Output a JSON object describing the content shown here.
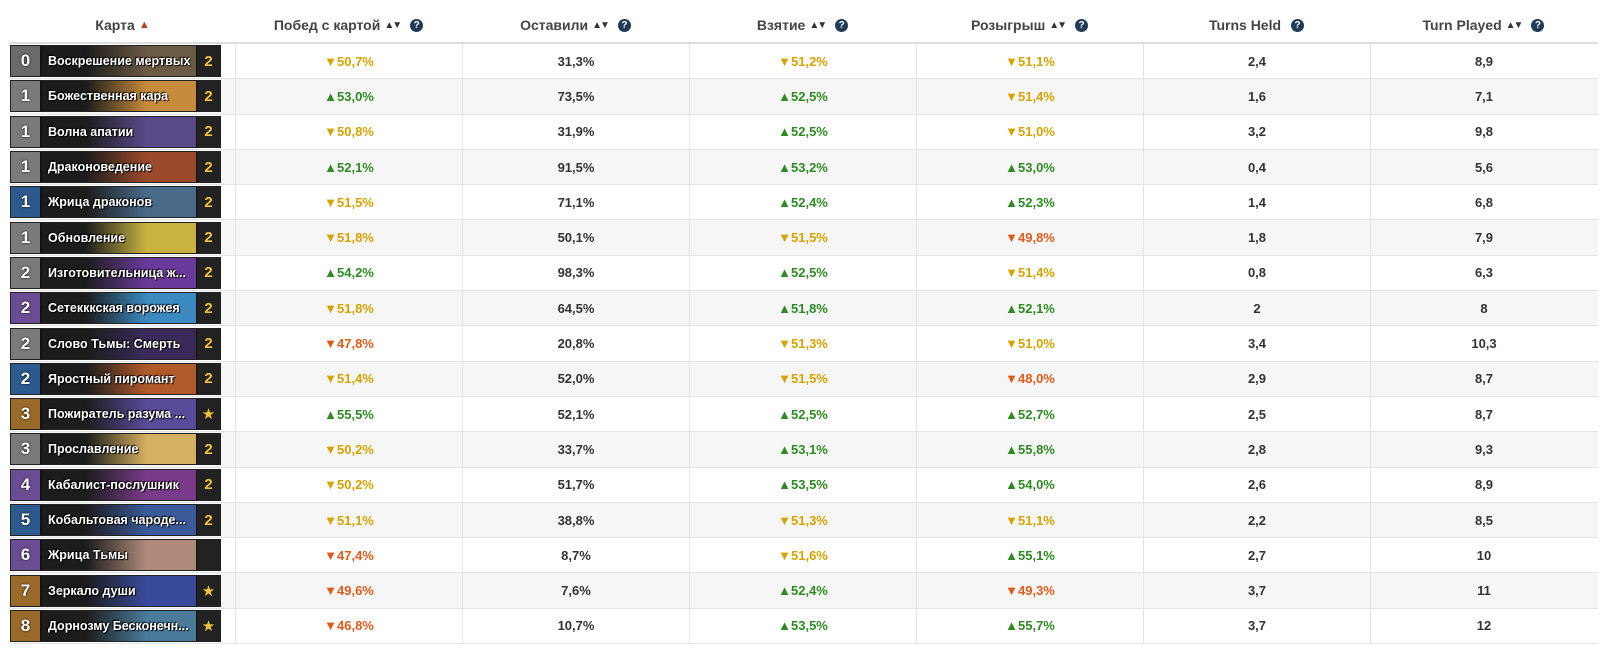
{
  "header": {
    "card": "Карта",
    "winrate": "Побед с картой",
    "kept": "Оставили",
    "drawn": "Взятие",
    "played": "Розыгрыш",
    "turns_held": "Turns Held",
    "turn_played": "Turn Played"
  },
  "rows": [
    {
      "mana": "0",
      "rarity": "free",
      "name": "Воскрешение мертвых",
      "count": "2",
      "art": "#6b5a44",
      "win": "▼50,7%",
      "winc": "warn",
      "kept": "31,3%",
      "drawn": "▼51,2%",
      "drawnc": "warn",
      "played": "▼51,1%",
      "playedc": "warn",
      "held": "2,4",
      "turn": "8,9"
    },
    {
      "mana": "1",
      "rarity": "common",
      "name": "Божественная кара",
      "count": "2",
      "art": "#c58a3a",
      "win": "▲53,0%",
      "winc": "pos",
      "kept": "73,5%",
      "drawn": "▲52,5%",
      "drawnc": "pos",
      "played": "▼51,4%",
      "playedc": "warn",
      "held": "1,6",
      "turn": "7,1"
    },
    {
      "mana": "1",
      "rarity": "common",
      "name": "Волна апатии",
      "count": "2",
      "art": "#5a4a8a",
      "win": "▼50,8%",
      "winc": "warn",
      "kept": "31,9%",
      "drawn": "▲52,5%",
      "drawnc": "pos",
      "played": "▼51,0%",
      "playedc": "warn",
      "held": "3,2",
      "turn": "9,8"
    },
    {
      "mana": "1",
      "rarity": "common",
      "name": "Драконоведение",
      "count": "2",
      "art": "#9a4a2a",
      "win": "▲52,1%",
      "winc": "pos",
      "kept": "91,5%",
      "drawn": "▲53,2%",
      "drawnc": "pos",
      "played": "▲53,0%",
      "playedc": "pos",
      "held": "0,4",
      "turn": "5,6"
    },
    {
      "mana": "1",
      "rarity": "rare",
      "name": "Жрица драконов",
      "count": "2",
      "art": "#4a6a8a",
      "win": "▼51,5%",
      "winc": "warn",
      "kept": "71,1%",
      "drawn": "▲52,4%",
      "drawnc": "pos",
      "played": "▲52,3%",
      "playedc": "pos",
      "held": "1,4",
      "turn": "6,8"
    },
    {
      "mana": "1",
      "rarity": "common",
      "name": "Обновление",
      "count": "2",
      "art": "#c9b240",
      "win": "▼51,8%",
      "winc": "warn",
      "kept": "50,1%",
      "drawn": "▼51,5%",
      "drawnc": "warn",
      "played": "▼49,8%",
      "playedc": "neg",
      "held": "1,8",
      "turn": "7,9"
    },
    {
      "mana": "2",
      "rarity": "common",
      "name": "Изготовительница ж...",
      "count": "2",
      "art": "#6a3a9a",
      "win": "▲54,2%",
      "winc": "pos",
      "kept": "98,3%",
      "drawn": "▲52,5%",
      "drawnc": "pos",
      "played": "▼51,4%",
      "playedc": "warn",
      "held": "0,8",
      "turn": "6,3"
    },
    {
      "mana": "2",
      "rarity": "epic",
      "name": "Сетекккская ворожея",
      "count": "2",
      "art": "#3a8ac0",
      "win": "▼51,8%",
      "winc": "warn",
      "kept": "64,5%",
      "drawn": "▲51,8%",
      "drawnc": "pos",
      "played": "▲52,1%",
      "playedc": "pos",
      "held": "2",
      "turn": "8"
    },
    {
      "mana": "2",
      "rarity": "common",
      "name": "Слово Тьмы: Смерть",
      "count": "2",
      "art": "#3a2a5a",
      "win": "▼47,8%",
      "winc": "neg",
      "kept": "20,8%",
      "drawn": "▼51,3%",
      "drawnc": "warn",
      "played": "▼51,0%",
      "playedc": "warn",
      "held": "3,4",
      "turn": "10,3"
    },
    {
      "mana": "2",
      "rarity": "rare",
      "name": "Яростный пиромант",
      "count": "2",
      "art": "#b05a2a",
      "win": "▼51,4%",
      "winc": "warn",
      "kept": "52,0%",
      "drawn": "▼51,5%",
      "drawnc": "warn",
      "played": "▼48,0%",
      "playedc": "neg",
      "held": "2,9",
      "turn": "8,7"
    },
    {
      "mana": "3",
      "rarity": "legend",
      "name": "Пожиратель разума ...",
      "count": "★",
      "art": "#5a4a9a",
      "win": "▲55,5%",
      "winc": "pos",
      "kept": "52,1%",
      "drawn": "▲52,5%",
      "drawnc": "pos",
      "played": "▲52,7%",
      "playedc": "pos",
      "held": "2,5",
      "turn": "8,7"
    },
    {
      "mana": "3",
      "rarity": "common",
      "name": "Прославление",
      "count": "2",
      "art": "#d4b060",
      "win": "▼50,2%",
      "winc": "warn",
      "kept": "33,7%",
      "drawn": "▲53,1%",
      "drawnc": "pos",
      "played": "▲55,8%",
      "playedc": "pos",
      "held": "2,8",
      "turn": "9,3"
    },
    {
      "mana": "4",
      "rarity": "epic",
      "name": "Кабалист-послушник",
      "count": "2",
      "art": "#7a3a8a",
      "win": "▼50,2%",
      "winc": "warn",
      "kept": "51,7%",
      "drawn": "▲53,5%",
      "drawnc": "pos",
      "played": "▲54,0%",
      "playedc": "pos",
      "held": "2,6",
      "turn": "8,9"
    },
    {
      "mana": "5",
      "rarity": "rare",
      "name": "Кобальтовая чароде...",
      "count": "2",
      "art": "#3a5a9a",
      "win": "▼51,1%",
      "winc": "warn",
      "kept": "38,8%",
      "drawn": "▼51,3%",
      "drawnc": "warn",
      "played": "▼51,1%",
      "playedc": "warn",
      "held": "2,2",
      "turn": "8,5"
    },
    {
      "mana": "6",
      "rarity": "epic",
      "name": "Жрица Тьмы",
      "count": "",
      "art": "#b08a7a",
      "win": "▼47,4%",
      "winc": "neg",
      "kept": "8,7%",
      "drawn": "▼51,6%",
      "drawnc": "warn",
      "played": "▲55,1%",
      "playedc": "pos",
      "held": "2,7",
      "turn": "10"
    },
    {
      "mana": "7",
      "rarity": "legend",
      "name": "Зеркало души",
      "count": "★",
      "art": "#3a4a9a",
      "win": "▼49,6%",
      "winc": "neg",
      "kept": "7,6%",
      "drawn": "▲52,4%",
      "drawnc": "pos",
      "played": "▼49,3%",
      "playedc": "neg",
      "held": "3,7",
      "turn": "11"
    },
    {
      "mana": "8",
      "rarity": "legend",
      "name": "Дорнозму Бесконечн...",
      "count": "★",
      "art": "#4a7a9a",
      "win": "▼46,8%",
      "winc": "neg",
      "kept": "10,7%",
      "drawn": "▲53,5%",
      "drawnc": "pos",
      "played": "▲55,7%",
      "playedc": "pos",
      "held": "3,7",
      "turn": "12"
    }
  ]
}
